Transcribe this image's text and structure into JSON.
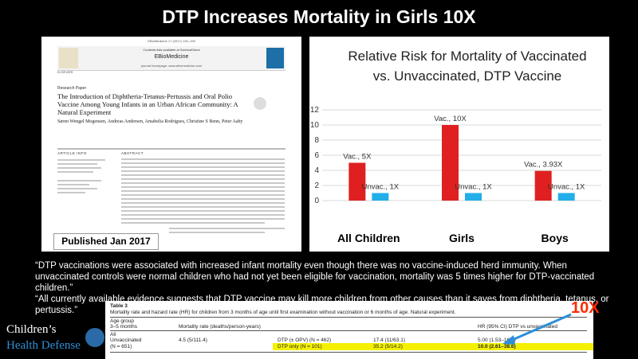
{
  "title": "DTP Increases Mortality in Girls 10X",
  "paper": {
    "top_meta": "EBioMedicine 17 (2017) 192–198",
    "contents_line": "Contents lists available at ScienceDirect",
    "journal": "EBioMedicine",
    "homepage": "journal homepage: www.ebiomedicine.com",
    "publisher_logo": "ELSEVIER",
    "paper_type": "Research Paper",
    "title": "The Introduction of Diphtheria-Tetanus-Pertussis and Oral Polio Vaccine Among Young Infants in an Urban African Community: A Natural Experiment",
    "authors": "Søren Wengel Mogensen, Andreas Andersen, Amabelia Rodrigues, Christine S Benn, Peter Aaby",
    "section_info": "ARTICLE INFO",
    "section_abstract": "ABSTRACT",
    "published": "Published Jan 2017"
  },
  "chart_data": {
    "type": "bar",
    "title": "Relative Risk for Mortality of Vaccinated vs. Unvaccinated, DTP Vaccine",
    "categories": [
      "All Children",
      "Girls",
      "Boys"
    ],
    "series": [
      {
        "values": [
          5,
          10,
          3.93
        ],
        "color": "#e02020",
        "labels": [
          "Vac., 5X",
          "Vac., 10X",
          "Vac., 3.93X"
        ]
      },
      {
        "values": [
          1,
          1,
          1
        ],
        "color": "#22aee8",
        "labels": [
          "Unvac., 1X",
          "Unvac., 1X",
          "Unvac., 1X"
        ]
      }
    ],
    "ylim": [
      0,
      12
    ],
    "yticks": [
      "0",
      "2",
      "4",
      "6",
      "8",
      "10",
      "12"
    ],
    "grid": true
  },
  "quotes": [
    "“DTP vaccinations were associated with increased infant mortality even though there was no vaccine-induced herd immunity. When unvaccinated controls were normal children who had not yet been eligible for vaccination, mortality was 5 times higher for DTP-vaccinated children.”",
    "“All currently available evidence suggests that DTP vaccine may kill more children from other causes than it saves from diphtheria, tetanus, or pertussis.”"
  ],
  "table": {
    "label": "Table 3",
    "caption": "Mortality rate and hazard rate (HR) for children from 3 months of age until first examination without vaccination or 6 months of age. Natural experiment.",
    "col_age": "Age group",
    "col_age2": "3–5 months",
    "col_rate": "Mortality rate (deaths/person-years)",
    "col_hr": "HR (95% CI) DTP vs unvaccinated",
    "row_all": "All",
    "row_unvac": "Unvaccinated",
    "row_unvac_n": "(N = 651)",
    "unvac_rate": "4.5 (5/111.4)",
    "dtp_opv_label": "DTP (± OPV) (N = 462)",
    "dtp_opv_rate": "17.4 (11/63.1)",
    "dtp_opv_hr": "5.00 (1.53–16.3)",
    "dtp_only_label": "DTP only (N = 101)",
    "dtp_only_rate": "35.2 (5/14.2)",
    "dtp_only_hr": "10.0 (2.61–38.6)"
  },
  "callout": "10X",
  "logo": {
    "line1": "Children’s",
    "line2": "Health Defense"
  },
  "colors": {
    "vaccinated": "#e02020",
    "unvaccinated": "#22aee8",
    "highlight": "#f4f000",
    "callout": "#ff2a00",
    "arrow": "#2e8fd6"
  }
}
